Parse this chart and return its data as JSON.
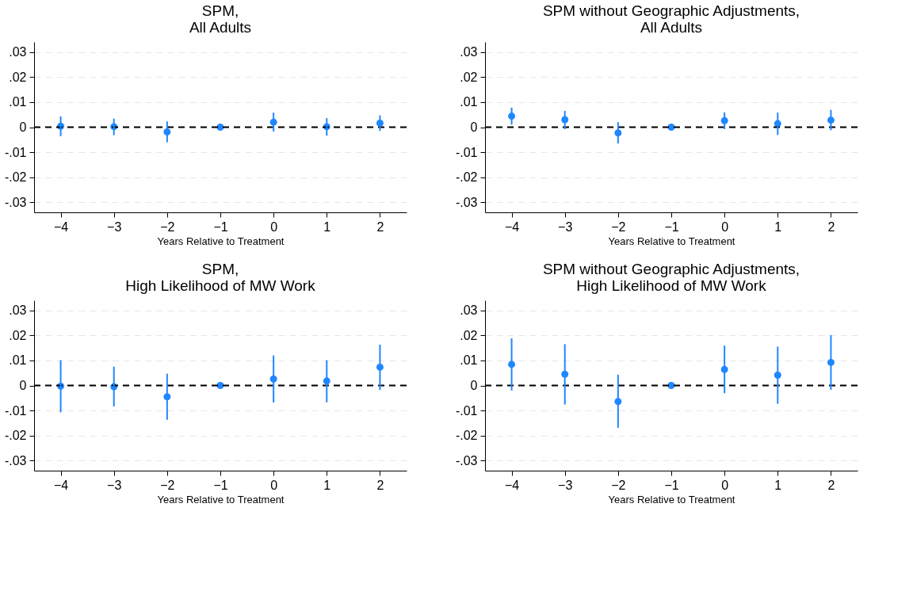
{
  "chart_data": [
    {
      "type": "scatter",
      "title": "SPM,\nAll Adults",
      "xlabel": "Years Relative to Treatment",
      "x": [
        -4,
        -3,
        -2,
        -1,
        0,
        1,
        2
      ],
      "series": [
        {
          "color": "#1f87ff",
          "values": [
            0.0004,
            0.0002,
            -0.0019,
            0,
            0.002,
            0.0002,
            0.0016
          ],
          "errors": [
            [
              -0.0036,
              0.0043
            ],
            [
              -0.0032,
              0.0034
            ],
            [
              -0.006,
              0.0023
            ],
            null,
            [
              -0.0017,
              0.0058
            ],
            [
              -0.0034,
              0.0036
            ],
            [
              -0.0015,
              0.0047
            ]
          ]
        }
      ],
      "xlim": [
        -4.5,
        2.5
      ],
      "xticks": [
        -4,
        -3,
        -2,
        -1,
        0,
        1,
        2
      ],
      "ylim": [
        -0.034,
        0.034
      ],
      "yticks": [
        {
          "value": -0.03,
          "label": "-.03"
        },
        {
          "value": -0.02,
          "label": "-.02"
        },
        {
          "value": -0.01,
          "label": "-.01"
        },
        0,
        {
          "value": 0.01,
          "label": ".01"
        },
        {
          "value": 0.02,
          "label": ".02"
        },
        {
          "value": 0.03,
          "label": ".03"
        }
      ],
      "ref_lines": [
        {
          "axis": "y",
          "value": 0,
          "color": "#000000",
          "line_style": "dashed"
        }
      ],
      "grid": "y",
      "marker": "circle"
    },
    {
      "type": "scatter",
      "title": "SPM without Geographic Adjustments,\nAll Adults",
      "xlabel": "Years Relative to Treatment",
      "x": [
        -4,
        -3,
        -2,
        -1,
        0,
        1,
        2
      ],
      "series": [
        {
          "color": "#1f87ff",
          "values": [
            0.0044,
            0.003,
            -0.0023,
            0,
            0.0026,
            0.0014,
            0.0028
          ],
          "errors": [
            [
              0.001,
              0.0078
            ],
            [
              -0.0008,
              0.0065
            ],
            [
              -0.0065,
              0.002
            ],
            null,
            [
              -0.0008,
              0.0059
            ],
            [
              -0.0031,
              0.0058
            ],
            [
              -0.0012,
              0.0069
            ]
          ]
        }
      ],
      "xlim": [
        -4.5,
        2.5
      ],
      "xticks": [
        -4,
        -3,
        -2,
        -1,
        0,
        1,
        2
      ],
      "ylim": [
        -0.034,
        0.034
      ],
      "yticks": [
        {
          "value": -0.03,
          "label": "-.03"
        },
        {
          "value": -0.02,
          "label": "-.02"
        },
        {
          "value": -0.01,
          "label": "-.01"
        },
        0,
        {
          "value": 0.01,
          "label": ".01"
        },
        {
          "value": 0.02,
          "label": ".02"
        },
        {
          "value": 0.03,
          "label": ".03"
        }
      ],
      "ref_lines": [
        {
          "axis": "y",
          "value": 0,
          "color": "#000000",
          "line_style": "dashed"
        }
      ],
      "grid": "y",
      "marker": "circle"
    },
    {
      "type": "scatter",
      "title": "SPM,\nHigh Likelihood of MW Work",
      "xlabel": "Years Relative to Treatment",
      "x": [
        -4,
        -3,
        -2,
        -1,
        0,
        1,
        2
      ],
      "series": [
        {
          "color": "#1f87ff",
          "values": [
            -0.0003,
            -0.0005,
            -0.0045,
            0,
            0.0026,
            0.0018,
            0.0073
          ],
          "errors": [
            [
              -0.0107,
              0.0101
            ],
            [
              -0.0084,
              0.0075
            ],
            [
              -0.0137,
              0.0047
            ],
            null,
            [
              -0.0068,
              0.012
            ],
            [
              -0.0067,
              0.0101
            ],
            [
              -0.0018,
              0.0163
            ]
          ]
        }
      ],
      "xlim": [
        -4.5,
        2.5
      ],
      "xticks": [
        -4,
        -3,
        -2,
        -1,
        0,
        1,
        2
      ],
      "ylim": [
        -0.034,
        0.034
      ],
      "yticks": [
        {
          "value": -0.03,
          "label": "-.03"
        },
        {
          "value": -0.02,
          "label": "-.02"
        },
        {
          "value": -0.01,
          "label": "-.01"
        },
        0,
        {
          "value": 0.01,
          "label": ".01"
        },
        {
          "value": 0.02,
          "label": ".02"
        },
        {
          "value": 0.03,
          "label": ".03"
        }
      ],
      "ref_lines": [
        {
          "axis": "y",
          "value": 0,
          "color": "#000000",
          "line_style": "dashed"
        }
      ],
      "grid": "y",
      "marker": "circle"
    },
    {
      "type": "scatter",
      "title": "SPM without Geographic Adjustments,\nHigh Likelihood of MW Work",
      "xlabel": "Years Relative to Treatment",
      "x": [
        -4,
        -3,
        -2,
        -1,
        0,
        1,
        2
      ],
      "series": [
        {
          "color": "#1f87ff",
          "values": [
            0.0084,
            0.0045,
            -0.0064,
            0,
            0.0064,
            0.0041,
            0.0092
          ],
          "errors": [
            [
              -0.002,
              0.0188
            ],
            [
              -0.0076,
              0.0165
            ],
            [
              -0.0169,
              0.0043
            ],
            null,
            [
              -0.0031,
              0.0159
            ],
            [
              -0.0073,
              0.0155
            ],
            [
              -0.0017,
              0.0201
            ]
          ]
        }
      ],
      "xlim": [
        -4.5,
        2.5
      ],
      "xticks": [
        -4,
        -3,
        -2,
        -1,
        0,
        1,
        2
      ],
      "ylim": [
        -0.034,
        0.034
      ],
      "yticks": [
        {
          "value": -0.03,
          "label": "-.03"
        },
        {
          "value": -0.02,
          "label": "-.02"
        },
        {
          "value": -0.01,
          "label": "-.01"
        },
        0,
        {
          "value": 0.01,
          "label": ".01"
        },
        {
          "value": 0.02,
          "label": ".02"
        },
        {
          "value": 0.03,
          "label": ".03"
        }
      ],
      "ref_lines": [
        {
          "axis": "y",
          "value": 0,
          "color": "#000000",
          "line_style": "dashed"
        }
      ],
      "grid": "y",
      "marker": "circle"
    }
  ]
}
